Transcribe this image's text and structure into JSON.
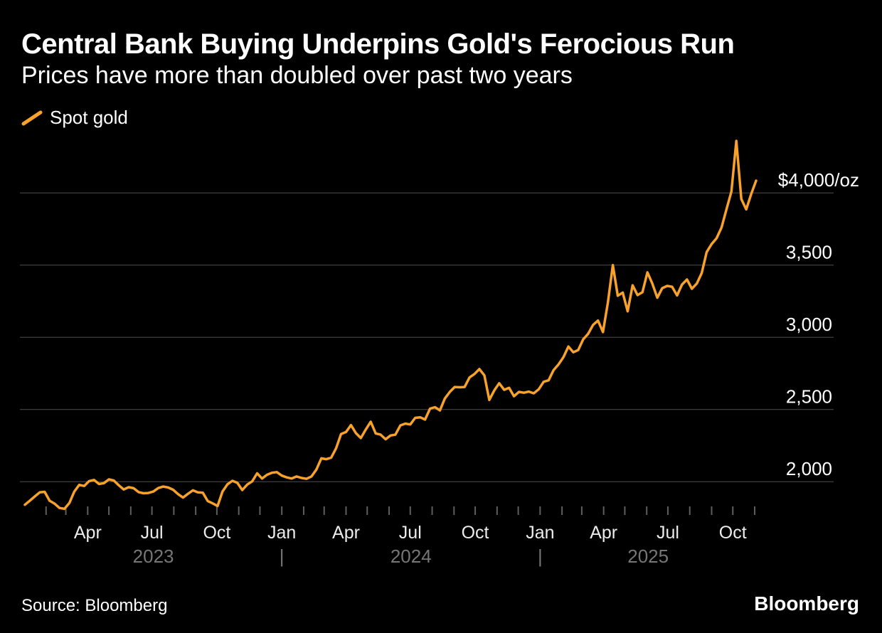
{
  "header": {
    "title": "Central Bank Buying Underpins Gold's Ferocious Run",
    "subtitle": "Prices have more than doubled over past two years"
  },
  "legend": {
    "label": "Spot gold"
  },
  "footer": {
    "source": "Source: Bloomberg",
    "brand": "Bloomberg"
  },
  "colors": {
    "background": "#000000",
    "line": "#F8A22B",
    "grid": "#4D4D4D",
    "tick": "#5E5E5E",
    "month_label": "#ECECEC",
    "year_label": "#767676",
    "y_label": "#FFFFFF"
  },
  "chart_data": {
    "type": "line",
    "title": "Central Bank Buying Underpins Gold's Ferocious Run",
    "subtitle": "Prices have more than doubled over past two years",
    "xlabel": "",
    "ylabel": "",
    "unit": "$/oz",
    "grid": "horizontal",
    "legend_position": "top-left",
    "ylim": [
      1750,
      4400
    ],
    "y_ticks": [
      {
        "value": 2000,
        "label": "2,000"
      },
      {
        "value": 2500,
        "label": "2,500"
      },
      {
        "value": 3000,
        "label": "3,000"
      },
      {
        "value": 3500,
        "label": "3,500"
      },
      {
        "value": 4000,
        "label": "$4,000/oz"
      }
    ],
    "x_axis": {
      "tick_start": "2023-02-01",
      "tick_end": "2025-11-01",
      "labeled_months": {
        "1": "Jan",
        "4": "Apr",
        "7": "Jul",
        "10": "Oct"
      },
      "year_labels": [
        "2023",
        "2024",
        "2025"
      ],
      "year_separator": "|"
    },
    "series": [
      {
        "name": "Spot gold",
        "unit": "$/oz",
        "start_date": "2023-01-02",
        "interval_days": 7,
        "values": [
          1840,
          1868,
          1898,
          1926,
          1930,
          1868,
          1848,
          1818,
          1812,
          1852,
          1932,
          1978,
          1970,
          2004,
          2012,
          1984,
          1990,
          2016,
          2008,
          1975,
          1946,
          1962,
          1955,
          1928,
          1920,
          1922,
          1932,
          1956,
          1966,
          1960,
          1944,
          1914,
          1890,
          1916,
          1940,
          1926,
          1924,
          1866,
          1850,
          1832,
          1932,
          1982,
          2006,
          1992,
          1942,
          1980,
          2002,
          2058,
          2022,
          2048,
          2062,
          2066,
          2042,
          2030,
          2022,
          2036,
          2026,
          2020,
          2036,
          2084,
          2162,
          2156,
          2166,
          2232,
          2330,
          2344,
          2392,
          2336,
          2302,
          2362,
          2415,
          2334,
          2326,
          2294,
          2320,
          2326,
          2390,
          2402,
          2396,
          2442,
          2446,
          2430,
          2506,
          2516,
          2494,
          2576,
          2622,
          2656,
          2654,
          2656,
          2722,
          2746,
          2780,
          2736,
          2566,
          2632,
          2682,
          2636,
          2650,
          2592,
          2622,
          2616,
          2624,
          2612,
          2640,
          2692,
          2702,
          2772,
          2812,
          2862,
          2936,
          2896,
          2912,
          2986,
          3024,
          3086,
          3116,
          3036,
          3240,
          3500,
          3288,
          3310,
          3180,
          3360,
          3292,
          3312,
          3450,
          3372,
          3274,
          3340,
          3356,
          3350,
          3290,
          3365,
          3400,
          3336,
          3372,
          3446,
          3590,
          3646,
          3686,
          3760,
          3886,
          4010,
          4360,
          3958,
          3886,
          3992,
          4085
        ]
      }
    ]
  }
}
